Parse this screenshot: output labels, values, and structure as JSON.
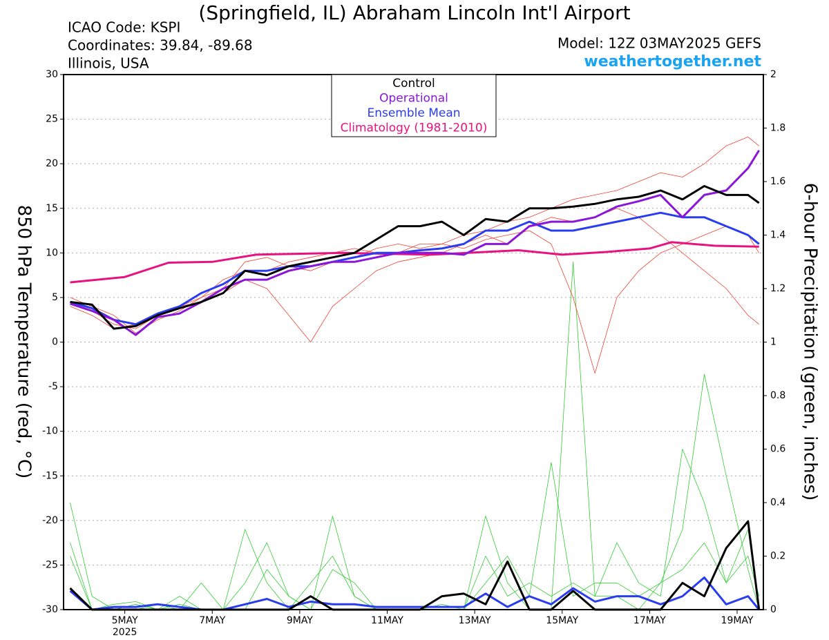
{
  "chart_data": {
    "type": "line",
    "title": "(Springfield, IL) Abraham Lincoln Int'l Airport",
    "info_left": [
      "ICAO Code: KSPI",
      "Coordinates: 39.84, -89.68",
      "Illinois, USA"
    ],
    "model": "Model: 12Z 03MAY2025 GEFS",
    "source": "weathertogether.net",
    "ylabel": "850 hPa Temperature (red, °C)",
    "y2label": "6-hour Precipitation (green, inches)",
    "x": [
      3.75,
      4.25,
      4.75,
      5.25,
      5.75,
      6.25,
      6.75,
      7.25,
      7.75,
      8.25,
      8.75,
      9.25,
      9.75,
      10.25,
      10.75,
      11.25,
      11.75,
      12.25,
      12.75,
      13.25,
      13.75,
      14.25,
      14.75,
      15.25,
      15.75,
      16.25,
      16.75,
      17.25,
      17.75,
      18.25,
      18.75,
      19.25,
      19.5
    ],
    "xlim": [
      3.6,
      19.6
    ],
    "xticks": [
      {
        "value": 5,
        "label": "5MAY"
      },
      {
        "value": 7,
        "label": "7MAY"
      },
      {
        "value": 9,
        "label": "9MAY"
      },
      {
        "value": 11,
        "label": "11MAY"
      },
      {
        "value": 13,
        "label": "13MAY"
      },
      {
        "value": 15,
        "label": "15MAY"
      },
      {
        "value": 17,
        "label": "17MAY"
      },
      {
        "value": 19,
        "label": "19MAY"
      }
    ],
    "x_year_label": "2025",
    "ylim": [
      -30,
      30
    ],
    "yticks": [
      -30,
      -25,
      -20,
      -15,
      -10,
      -5,
      0,
      5,
      10,
      15,
      20,
      25,
      30
    ],
    "y2lim": [
      0,
      2
    ],
    "y2ticks": [
      0,
      0.2,
      0.4,
      0.6,
      0.8,
      1,
      1.2,
      1.4,
      1.6,
      1.8,
      2
    ],
    "grid": true,
    "series": [
      {
        "color": "#33cc33",
        "axis": "y2",
        "linewidth": 0.8,
        "values": [
          0.4,
          0.05,
          0,
          0,
          0.02,
          0,
          0.1,
          0,
          0,
          0.15,
          0.05,
          0,
          0.35,
          0.05,
          0,
          0,
          0,
          0,
          0,
          0.35,
          0.1,
          0,
          0,
          1.3,
          0.05,
          0.05,
          0,
          0.1,
          0.15,
          0.25,
          0.1,
          0.2,
          0.05
        ]
      },
      {
        "color": "#33cc33",
        "axis": "y2",
        "linewidth": 0.8,
        "values": [
          0.2,
          0,
          0.02,
          0.03,
          0,
          0.05,
          0,
          0,
          0.3,
          0.1,
          0,
          0.1,
          0.2,
          0.05,
          0,
          0,
          0,
          0.02,
          0,
          0.1,
          0.2,
          0.05,
          0.55,
          0.05,
          0.1,
          0.1,
          0.05,
          0.1,
          0.3,
          0.88,
          0.5,
          0.15,
          0
        ]
      },
      {
        "color": "#33cc33",
        "axis": "y2",
        "linewidth": 0.8,
        "values": [
          0.25,
          0,
          0,
          0.02,
          0,
          0.02,
          0,
          0,
          0.1,
          0.25,
          0.05,
          0,
          0.15,
          0.1,
          0,
          0,
          0,
          0,
          0,
          0.2,
          0.05,
          0.1,
          0.05,
          0.1,
          0.05,
          0.25,
          0.1,
          0.05,
          0.6,
          0.4,
          0.1,
          0.3,
          0
        ]
      },
      {
        "color": "#f04030",
        "linewidth": 0.8,
        "values": [
          4,
          3,
          1.5,
          2,
          3,
          4,
          5,
          7,
          8,
          8,
          9,
          9.5,
          10,
          10.5,
          10,
          10,
          11,
          11,
          10.5,
          11.5,
          12,
          12.5,
          11,
          5,
          -3.5,
          5,
          8,
          10,
          11,
          12,
          13,
          12,
          10
        ]
      },
      {
        "color": "#f04030",
        "linewidth": 0.8,
        "values": [
          5,
          4,
          3,
          1,
          2.5,
          3.5,
          5,
          6,
          9,
          9.5,
          8.5,
          8,
          9,
          9.5,
          10.5,
          11,
          10.5,
          11,
          12,
          12.5,
          13.5,
          14,
          15,
          16,
          16.5,
          17,
          18,
          19,
          18.5,
          20,
          22,
          23,
          22
        ]
      },
      {
        "color": "#f04030",
        "linewidth": 0.8,
        "values": [
          4.5,
          3.5,
          2,
          1.5,
          3,
          4,
          4.5,
          5.5,
          7,
          6,
          3,
          0,
          4,
          6,
          8,
          9,
          9.5,
          10,
          11,
          12,
          11,
          13,
          14,
          13.5,
          14,
          15,
          14,
          12,
          10,
          8,
          6,
          3,
          2
        ]
      },
      {
        "color": "#2a3cf0",
        "axis": "y2",
        "linewidth": 3,
        "values": [
          0.07,
          0,
          0.01,
          0.01,
          0.02,
          0.01,
          0,
          0,
          0.02,
          0.04,
          0.01,
          0.03,
          0.02,
          0.02,
          0.01,
          0.01,
          0.01,
          0.01,
          0.01,
          0.06,
          0.01,
          0.05,
          0.02,
          0.08,
          0.03,
          0.05,
          0.05,
          0.02,
          0.05,
          0.12,
          0.02,
          0.05,
          0
        ]
      },
      {
        "color": "#000000",
        "axis": "y2",
        "linewidth": 3,
        "values": [
          0.08,
          0,
          0,
          0,
          0,
          0,
          0,
          0,
          0,
          0,
          0,
          0.05,
          0,
          0,
          0,
          0,
          0,
          0.05,
          0.06,
          0.02,
          0.18,
          0,
          0,
          0.07,
          0,
          0,
          0,
          0,
          0.1,
          0.05,
          0.23,
          0.33,
          0
        ]
      },
      {
        "name": "Climatology (1981-2010)",
        "color": "#e8127f",
        "linewidth": 3,
        "x": [
          3.75,
          5,
          6,
          7,
          8,
          10,
          12,
          14,
          15,
          16,
          17,
          17.5,
          18.5,
          19.5
        ],
        "values": [
          6.7,
          7.3,
          8.9,
          9.0,
          9.8,
          10.0,
          9.8,
          10.3,
          9.8,
          10.1,
          10.5,
          11.2,
          10.8,
          10.7
        ]
      },
      {
        "name": "Ensemble Mean",
        "color": "#2a3cf0",
        "linewidth": 3,
        "values": [
          4.5,
          3.8,
          2.5,
          2.0,
          3.2,
          4.0,
          5.5,
          6.5,
          8.0,
          8.0,
          8.5,
          8.5,
          9.0,
          9.5,
          10.0,
          10.0,
          10.3,
          10.5,
          11.0,
          12.5,
          12.5,
          13.5,
          12.5,
          12.5,
          13.0,
          13.5,
          14.0,
          14.5,
          14.0,
          14.0,
          13.0,
          12.0,
          11.0
        ]
      },
      {
        "name": "Operational",
        "color": "#8a16d8",
        "linewidth": 3,
        "values": [
          4.3,
          3.5,
          2.5,
          0.8,
          2.8,
          3.2,
          4.5,
          6.0,
          7.0,
          7.0,
          8.0,
          8.5,
          9.0,
          9.0,
          9.5,
          10.0,
          10.0,
          10.0,
          9.8,
          11.0,
          11.0,
          13.0,
          13.5,
          13.5,
          14.0,
          15.2,
          15.8,
          16.5,
          14.0,
          16.5,
          17.0,
          19.5,
          21.5
        ]
      },
      {
        "name": "Control",
        "color": "#000000",
        "linewidth": 3,
        "values": [
          4.5,
          4.2,
          1.5,
          1.8,
          3.0,
          3.8,
          4.5,
          5.5,
          8.0,
          7.5,
          8.5,
          9.0,
          9.5,
          10.0,
          11.5,
          13.0,
          13.0,
          13.5,
          12.0,
          13.8,
          13.5,
          15.0,
          15.0,
          15.2,
          15.5,
          16.0,
          16.3,
          17.0,
          16.0,
          17.5,
          16.5,
          16.5,
          15.6
        ]
      }
    ]
  }
}
